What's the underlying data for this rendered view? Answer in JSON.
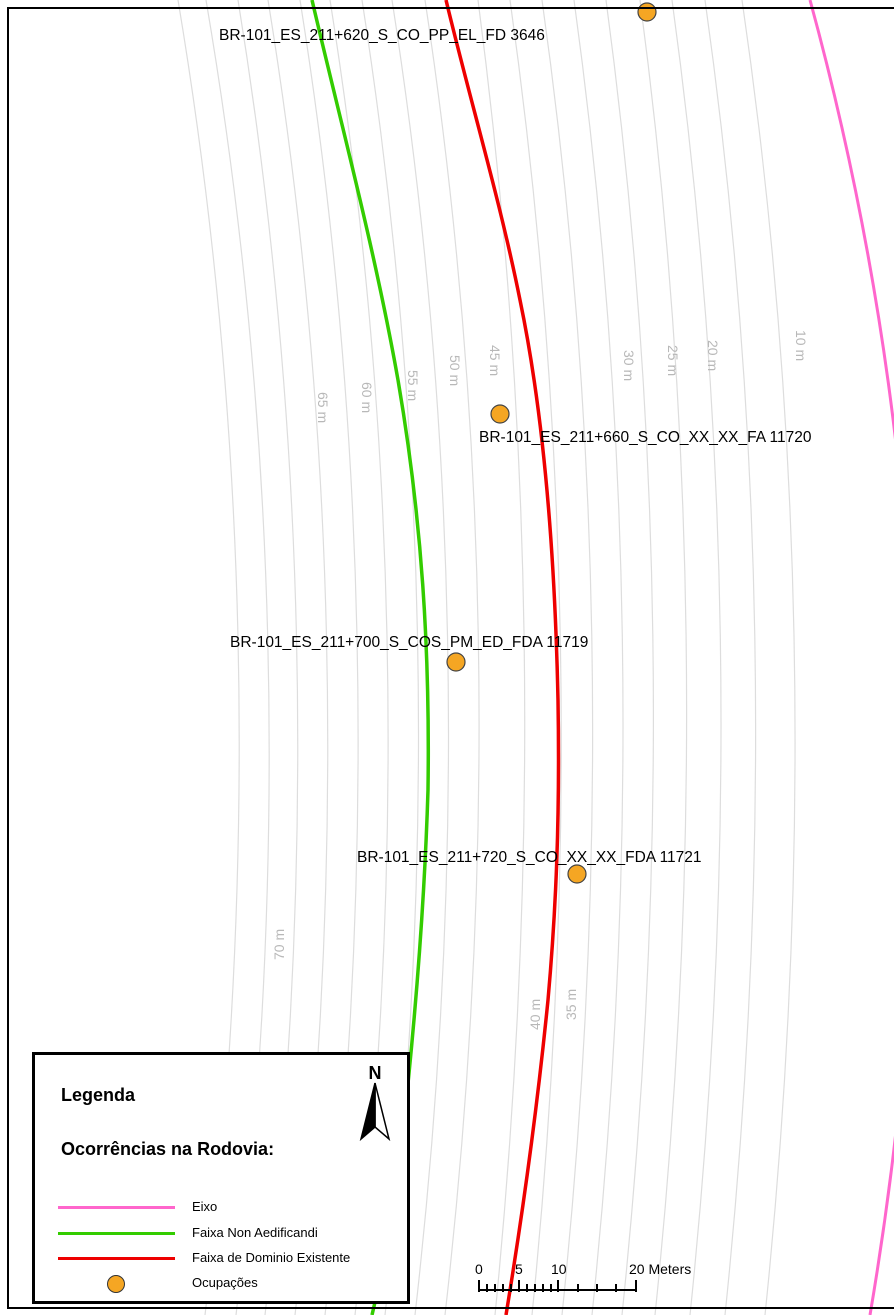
{
  "colors": {
    "eixo": "#ff66cc",
    "faixa_non_aedificandi": "#33cc00",
    "faixa_dominio": "#ee0000",
    "ocupacoes": "#f5a623",
    "contours": "#dddddd"
  },
  "contour_labels": [
    "10 m",
    "20 m",
    "25 m",
    "30 m",
    "35 m",
    "40 m",
    "45 m",
    "50 m",
    "55 m",
    "60 m",
    "65 m",
    "70 m"
  ],
  "occurrences": [
    "BR-101_ES_211+620_S_CO_PP_EL_FD 3646",
    "BR-101_ES_211+660_S_CO_XX_XX_FA 11720",
    "BR-101_ES_211+700_S_COS_PM_ED_FDA 11719",
    "BR-101_ES_211+720_S_CO_XX_XX_FDA 11721"
  ],
  "legend": {
    "title": "Legenda",
    "subtitle": "Ocorrências na Rodovia:",
    "items": [
      "Eixo",
      "Faixa Non Aedificandi",
      "Faixa de Dominio Existente",
      "Ocupações"
    ]
  },
  "north_arrow": {
    "label": "N",
    "icon": "north-arrow-icon"
  },
  "scale_bar": {
    "ticks": [
      "0",
      "5",
      "10",
      "20 Meters"
    ]
  }
}
